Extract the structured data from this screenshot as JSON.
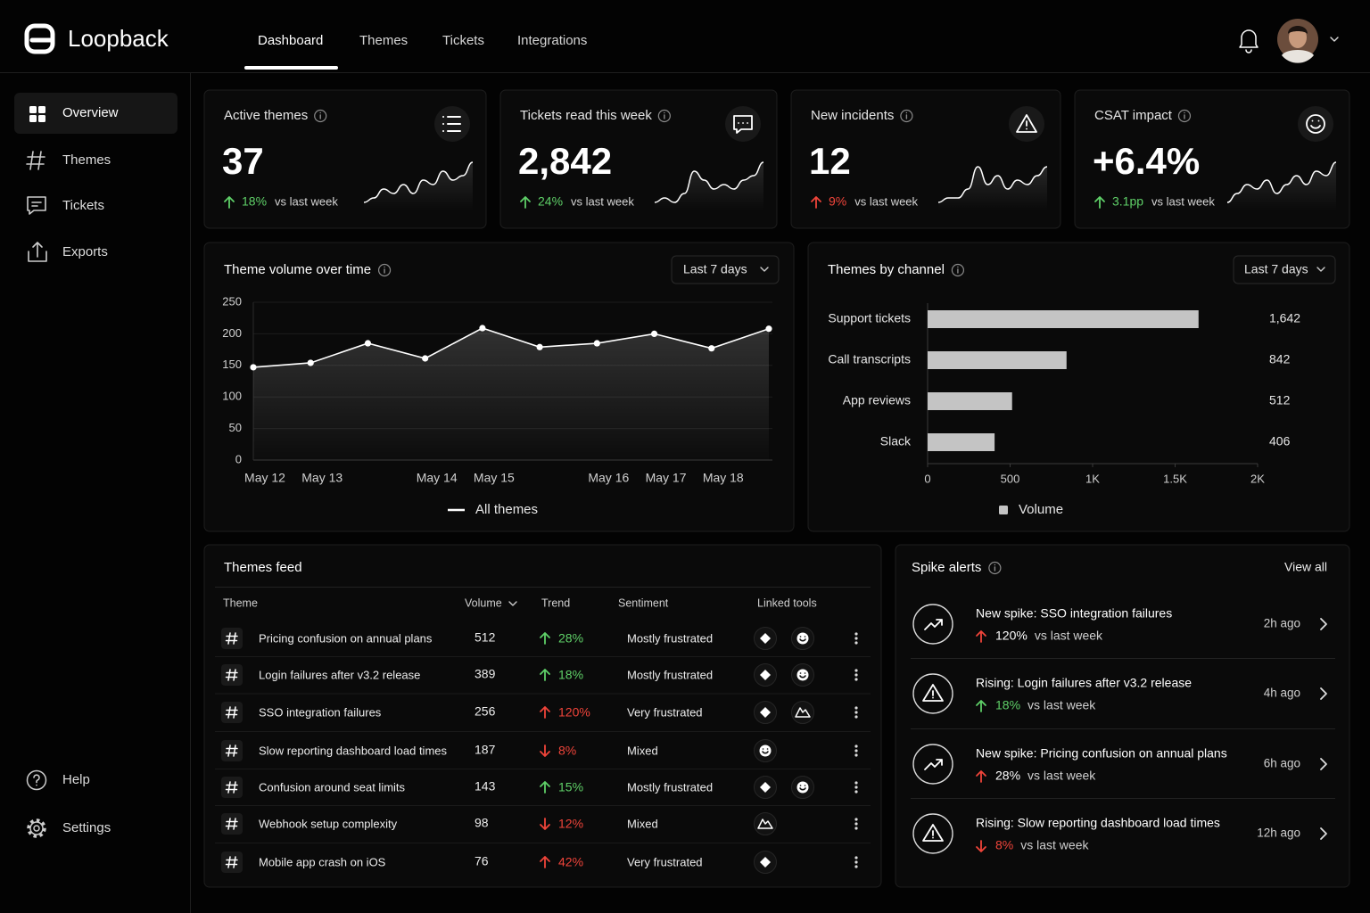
{
  "brand": "Loopback",
  "nav": {
    "items": [
      "Dashboard",
      "Themes",
      "Tickets",
      "Integrations"
    ]
  },
  "sidebar": {
    "items": [
      "Overview",
      "Themes",
      "Tickets",
      "Exports"
    ],
    "bottom": [
      "Help",
      "Settings"
    ]
  },
  "kpis": [
    {
      "label": "Active themes",
      "value": "37",
      "change": "18%",
      "direction": "up",
      "color": "#5fd068",
      "comparison": "vs last week",
      "sparkline": [
        1,
        2,
        4,
        3,
        5,
        3,
        6,
        5,
        8,
        6,
        7,
        10
      ]
    },
    {
      "label": "Tickets read this week",
      "value": "2,842",
      "change": "24%",
      "direction": "up",
      "color": "#5fd068",
      "comparison": "vs last week",
      "sparkline": [
        1,
        2,
        1,
        3,
        8,
        6,
        4,
        5,
        4,
        6,
        7,
        10
      ]
    },
    {
      "label": "New incidents",
      "value": "12",
      "change": "9%",
      "direction": "up",
      "color": "#f0443a",
      "comparison": "vs last week",
      "sparkline": [
        1,
        2,
        2,
        4,
        9,
        5,
        7,
        4,
        6,
        5,
        7,
        9
      ]
    },
    {
      "label": "CSAT impact",
      "value": "+6.4%",
      "change": "3.1pp",
      "direction": "up",
      "color": "#5fd068",
      "comparison": "vs last week",
      "sparkline": [
        1,
        3,
        5,
        4,
        6,
        3,
        5,
        7,
        5,
        8,
        7,
        10
      ]
    }
  ],
  "chart_data": [
    {
      "type": "line",
      "title": "Theme volume over time",
      "dropdown": "Last 7 days",
      "categories": [
        "May 12",
        "May 13",
        null,
        "May 14",
        "May 15",
        null,
        "May 16",
        "May 17",
        "May 18",
        null
      ],
      "series": [
        {
          "name": "All themes",
          "color": "#ffffff",
          "values": [
            147,
            154,
            185,
            161,
            209,
            179,
            185,
            200,
            177,
            208
          ]
        }
      ],
      "ylim": [
        0,
        250
      ],
      "yticks": [
        0,
        50,
        100,
        150,
        200,
        250
      ],
      "grid": true
    },
    {
      "type": "bar",
      "orientation": "horizontal",
      "title": "Themes by channel",
      "dropdown": "Last 7 days",
      "categories": [
        "Support tickets",
        "Call transcripts",
        "App reviews",
        "Slack"
      ],
      "series": [
        {
          "name": "Volume",
          "color": "#c4c4c4",
          "values": [
            1642,
            842,
            512,
            406
          ],
          "value_labels": [
            "1,642",
            "842",
            "512",
            "406"
          ]
        }
      ],
      "xlim": [
        0,
        2000
      ],
      "xticks": [
        0,
        500,
        {
          "value": 1000,
          "label": "1K"
        },
        {
          "value": 1500,
          "label": "1.5K"
        },
        {
          "value": 2000,
          "label": "2K"
        }
      ]
    }
  ],
  "feed": {
    "title": "Themes feed",
    "columns": [
      "Theme",
      "Volume",
      "Trend",
      "Sentiment",
      "Linked tools"
    ],
    "rows": [
      {
        "theme": "Pricing confusion on annual plans",
        "volume": "512",
        "trend": "28%",
        "trend_direction": "up",
        "trend_color": "#5fd068",
        "sentiment": "Mostly frustrated"
      },
      {
        "theme": "Login failures after v3.2 release",
        "volume": "389",
        "trend": "18%",
        "trend_direction": "up",
        "trend_color": "#5fd068",
        "sentiment": "Mostly frustrated"
      },
      {
        "theme": "SSO integration failures",
        "volume": "256",
        "trend": "120%",
        "trend_direction": "up",
        "trend_color": "#f0443a",
        "sentiment": "Very frustrated"
      },
      {
        "theme": "Slow reporting dashboard load times",
        "volume": "187",
        "trend": "8%",
        "trend_direction": "down",
        "trend_color": "#f0443a",
        "sentiment": "Mixed"
      },
      {
        "theme": "Confusion around seat limits",
        "volume": "143",
        "trend": "15%",
        "trend_direction": "up",
        "trend_color": "#5fd068",
        "sentiment": "Mostly frustrated"
      },
      {
        "theme": "Webhook setup complexity",
        "volume": "98",
        "trend": "12%",
        "trend_direction": "down",
        "trend_color": "#f0443a",
        "sentiment": "Mixed"
      },
      {
        "theme": "Mobile app crash on iOS",
        "volume": "76",
        "trend": "42%",
        "trend_direction": "up",
        "trend_color": "#f0443a",
        "sentiment": "Very frustrated"
      }
    ]
  },
  "alerts": {
    "title": "Spike alerts",
    "action": "View all",
    "items": [
      {
        "title": "New spike: SSO integration failures",
        "change": "120%",
        "direction": "up",
        "arrow_color": "#f0443a",
        "change_color": "#ffffff",
        "comparison": "vs last week",
        "time": "2h ago"
      },
      {
        "title": "Rising: Login failures after v3.2 release",
        "change": "18%",
        "direction": "up",
        "arrow_color": "#5fd068",
        "change_color": "#5fd068",
        "comparison": "vs last week",
        "time": "4h ago"
      },
      {
        "title": "New spike: Pricing confusion on annual plans",
        "change": "28%",
        "direction": "up",
        "arrow_color": "#f0443a",
        "change_color": "#ffffff",
        "comparison": "vs last week",
        "time": "6h ago"
      },
      {
        "title": "Rising: Slow reporting dashboard load times",
        "change": "8%",
        "direction": "down",
        "arrow_color": "#f0443a",
        "change_color": "#f0443a",
        "comparison": "vs last week",
        "time": "12h ago"
      }
    ]
  }
}
